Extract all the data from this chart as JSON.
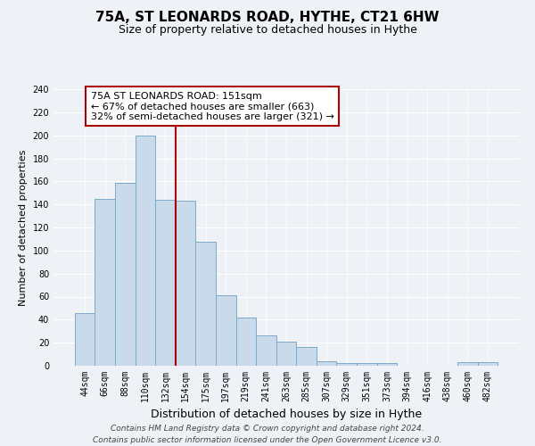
{
  "title": "75A, ST LEONARDS ROAD, HYTHE, CT21 6HW",
  "subtitle": "Size of property relative to detached houses in Hythe",
  "xlabel": "Distribution of detached houses by size in Hythe",
  "ylabel": "Number of detached properties",
  "bar_labels": [
    "44sqm",
    "66sqm",
    "88sqm",
    "110sqm",
    "132sqm",
    "154sqm",
    "175sqm",
    "197sqm",
    "219sqm",
    "241sqm",
    "263sqm",
    "285sqm",
    "307sqm",
    "329sqm",
    "351sqm",
    "373sqm",
    "394sqm",
    "416sqm",
    "438sqm",
    "460sqm",
    "482sqm"
  ],
  "bar_values": [
    46,
    145,
    159,
    200,
    144,
    143,
    108,
    61,
    42,
    26,
    21,
    16,
    4,
    2,
    2,
    2,
    0,
    0,
    0,
    3,
    3
  ],
  "bar_color": "#c9daea",
  "bar_edge_color": "#7aaac8",
  "vline_x_idx": 5,
  "vline_color": "#aa0000",
  "ylim": [
    0,
    240
  ],
  "yticks": [
    0,
    20,
    40,
    60,
    80,
    100,
    120,
    140,
    160,
    180,
    200,
    220,
    240
  ],
  "annotation_title": "75A ST LEONARDS ROAD: 151sqm",
  "annotation_line1": "← 67% of detached houses are smaller (663)",
  "annotation_line2": "32% of semi-detached houses are larger (321) →",
  "annotation_box_facecolor": "#ffffff",
  "annotation_box_edgecolor": "#aa0000",
  "footer_line1": "Contains HM Land Registry data © Crown copyright and database right 2024.",
  "footer_line2": "Contains public sector information licensed under the Open Government Licence v3.0.",
  "bg_color": "#eef2f7",
  "grid_color": "#ffffff",
  "title_fontsize": 11,
  "subtitle_fontsize": 9,
  "ylabel_fontsize": 8,
  "xlabel_fontsize": 9,
  "tick_fontsize": 7,
  "annotation_fontsize": 8,
  "footer_fontsize": 6.5
}
